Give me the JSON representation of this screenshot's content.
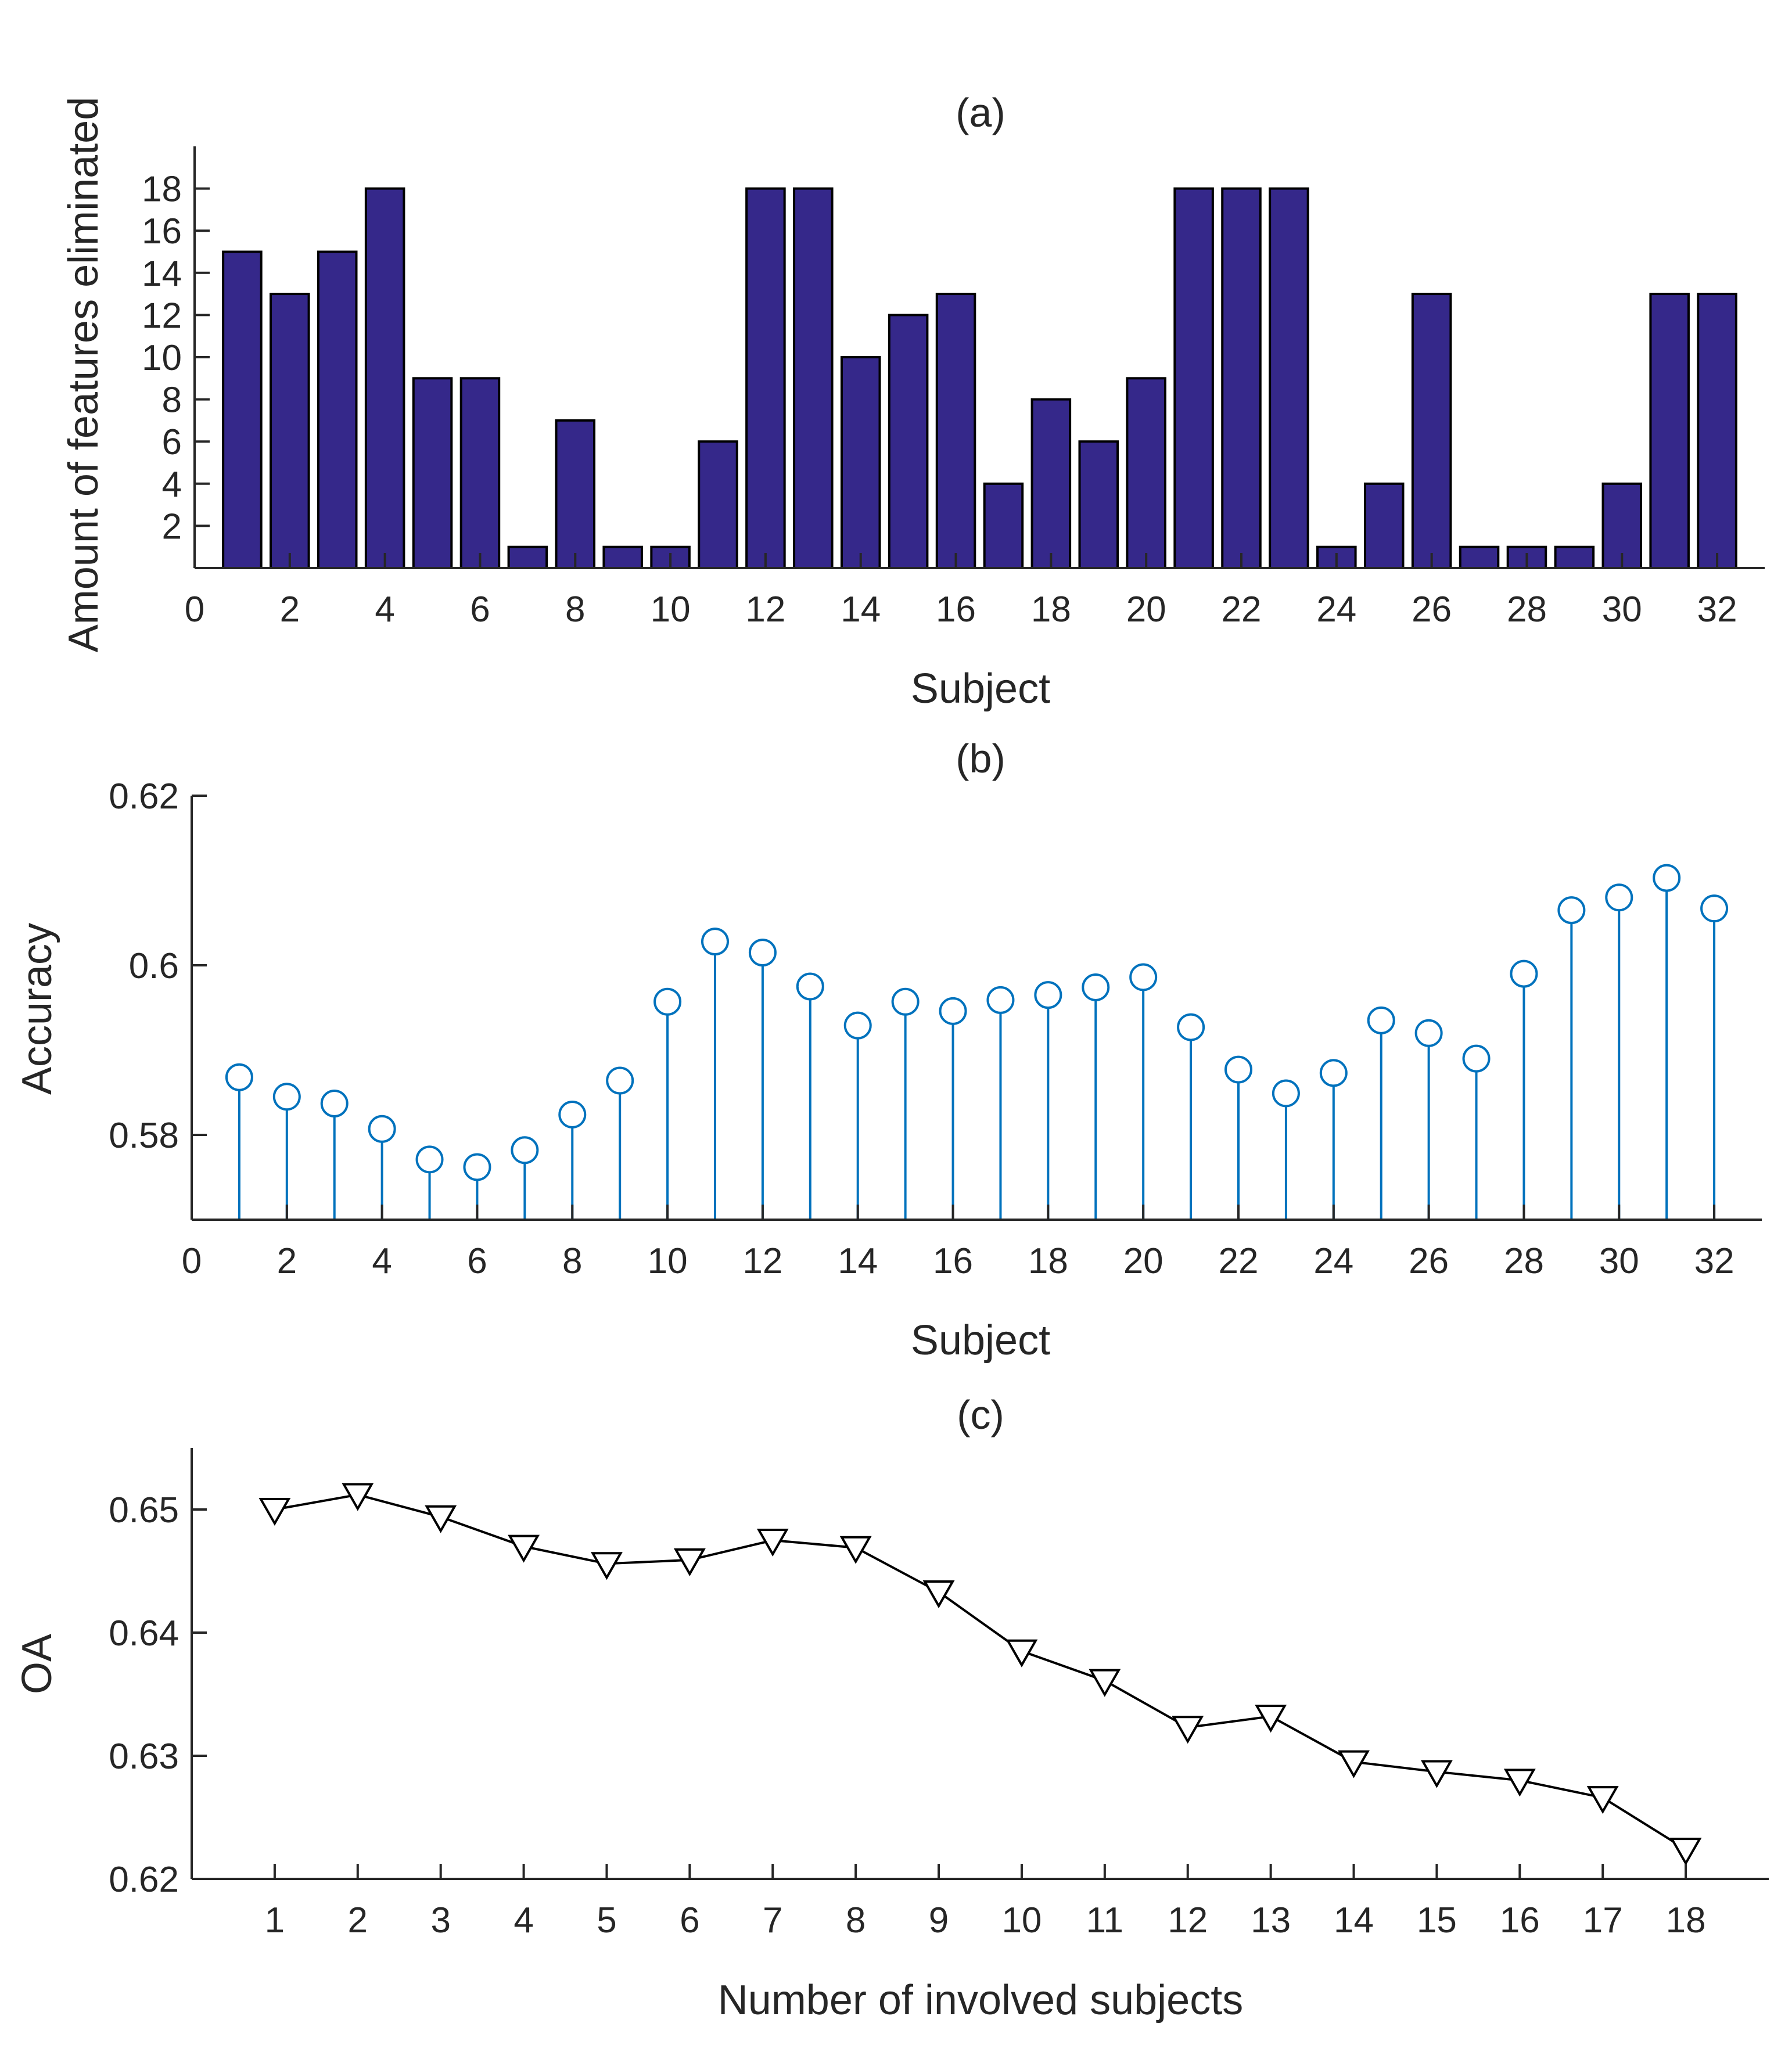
{
  "chart_data": [
    {
      "type": "bar",
      "title": "(a)",
      "xlabel": "Subject",
      "ylabel": "Amount of features eliminated",
      "xlim": [
        0,
        33
      ],
      "ylim": [
        0,
        20
      ],
      "xticks": [
        0,
        2,
        4,
        6,
        8,
        10,
        12,
        14,
        16,
        18,
        20,
        22,
        24,
        26,
        28,
        30,
        32
      ],
      "yticks": [
        2,
        4,
        6,
        8,
        10,
        12,
        14,
        16,
        18
      ],
      "x": [
        1,
        2,
        3,
        4,
        5,
        6,
        7,
        8,
        9,
        10,
        11,
        12,
        13,
        14,
        15,
        16,
        17,
        18,
        19,
        20,
        21,
        22,
        23,
        24,
        25,
        26,
        27,
        28,
        29,
        30,
        31,
        32
      ],
      "values": [
        15,
        13,
        15,
        18,
        9,
        9,
        1,
        7,
        1,
        1,
        6,
        18,
        18,
        10,
        12,
        13,
        4,
        8,
        6,
        9,
        18,
        18,
        18,
        1,
        4,
        13,
        1,
        1,
        1,
        4,
        13,
        13
      ],
      "bar_color": "#35288a",
      "grid": false
    },
    {
      "type": "stem",
      "title": "(b)",
      "xlabel": "Subject",
      "ylabel": "Accuracy",
      "xlim": [
        0,
        33
      ],
      "ylim": [
        0.57,
        0.62
      ],
      "xticks": [
        0,
        2,
        4,
        6,
        8,
        10,
        12,
        14,
        16,
        18,
        20,
        22,
        24,
        26,
        28,
        30,
        32
      ],
      "yticks": [
        0.58,
        0.6,
        0.62
      ],
      "ytick_labels": [
        "0.58",
        "0.6",
        "0.62"
      ],
      "x": [
        1,
        2,
        3,
        4,
        5,
        6,
        7,
        8,
        9,
        10,
        11,
        12,
        13,
        14,
        15,
        16,
        17,
        18,
        19,
        20,
        21,
        22,
        23,
        24,
        25,
        26,
        27,
        28,
        29,
        30,
        31,
        32
      ],
      "values": [
        0.5868,
        0.5845,
        0.5837,
        0.5807,
        0.5771,
        0.5762,
        0.5782,
        0.5824,
        0.5864,
        0.5957,
        0.6028,
        0.6015,
        0.5975,
        0.5929,
        0.5957,
        0.5946,
        0.5959,
        0.5965,
        0.5974,
        0.5986,
        0.5927,
        0.5877,
        0.5849,
        0.5873,
        0.5935,
        0.592,
        0.589,
        0.599,
        0.6065,
        0.608,
        0.6103,
        0.6067
      ],
      "marker": "circle",
      "color": "#0072bd",
      "grid": false
    },
    {
      "type": "line",
      "title": "(c)",
      "xlabel": "Number of involved subjects",
      "ylabel": "OA",
      "xlim": [
        0,
        19
      ],
      "ylim": [
        0.62,
        0.655
      ],
      "xticks": [
        1,
        2,
        3,
        4,
        5,
        6,
        7,
        8,
        9,
        10,
        11,
        12,
        13,
        14,
        15,
        16,
        17,
        18
      ],
      "yticks": [
        0.62,
        0.63,
        0.64,
        0.65
      ],
      "ytick_labels": [
        "0.62",
        "0.63",
        "0.64",
        "0.65"
      ],
      "x": [
        1,
        2,
        3,
        4,
        5,
        6,
        7,
        8,
        9,
        10,
        11,
        12,
        13,
        14,
        15,
        16,
        17,
        18
      ],
      "values": [
        0.65,
        0.6512,
        0.6494,
        0.647,
        0.6456,
        0.6459,
        0.6475,
        0.6469,
        0.6433,
        0.6385,
        0.6361,
        0.6323,
        0.6332,
        0.6295,
        0.6287,
        0.628,
        0.6266,
        0.6224
      ],
      "marker": "triangle-down",
      "color": "#000000",
      "grid": false
    }
  ]
}
